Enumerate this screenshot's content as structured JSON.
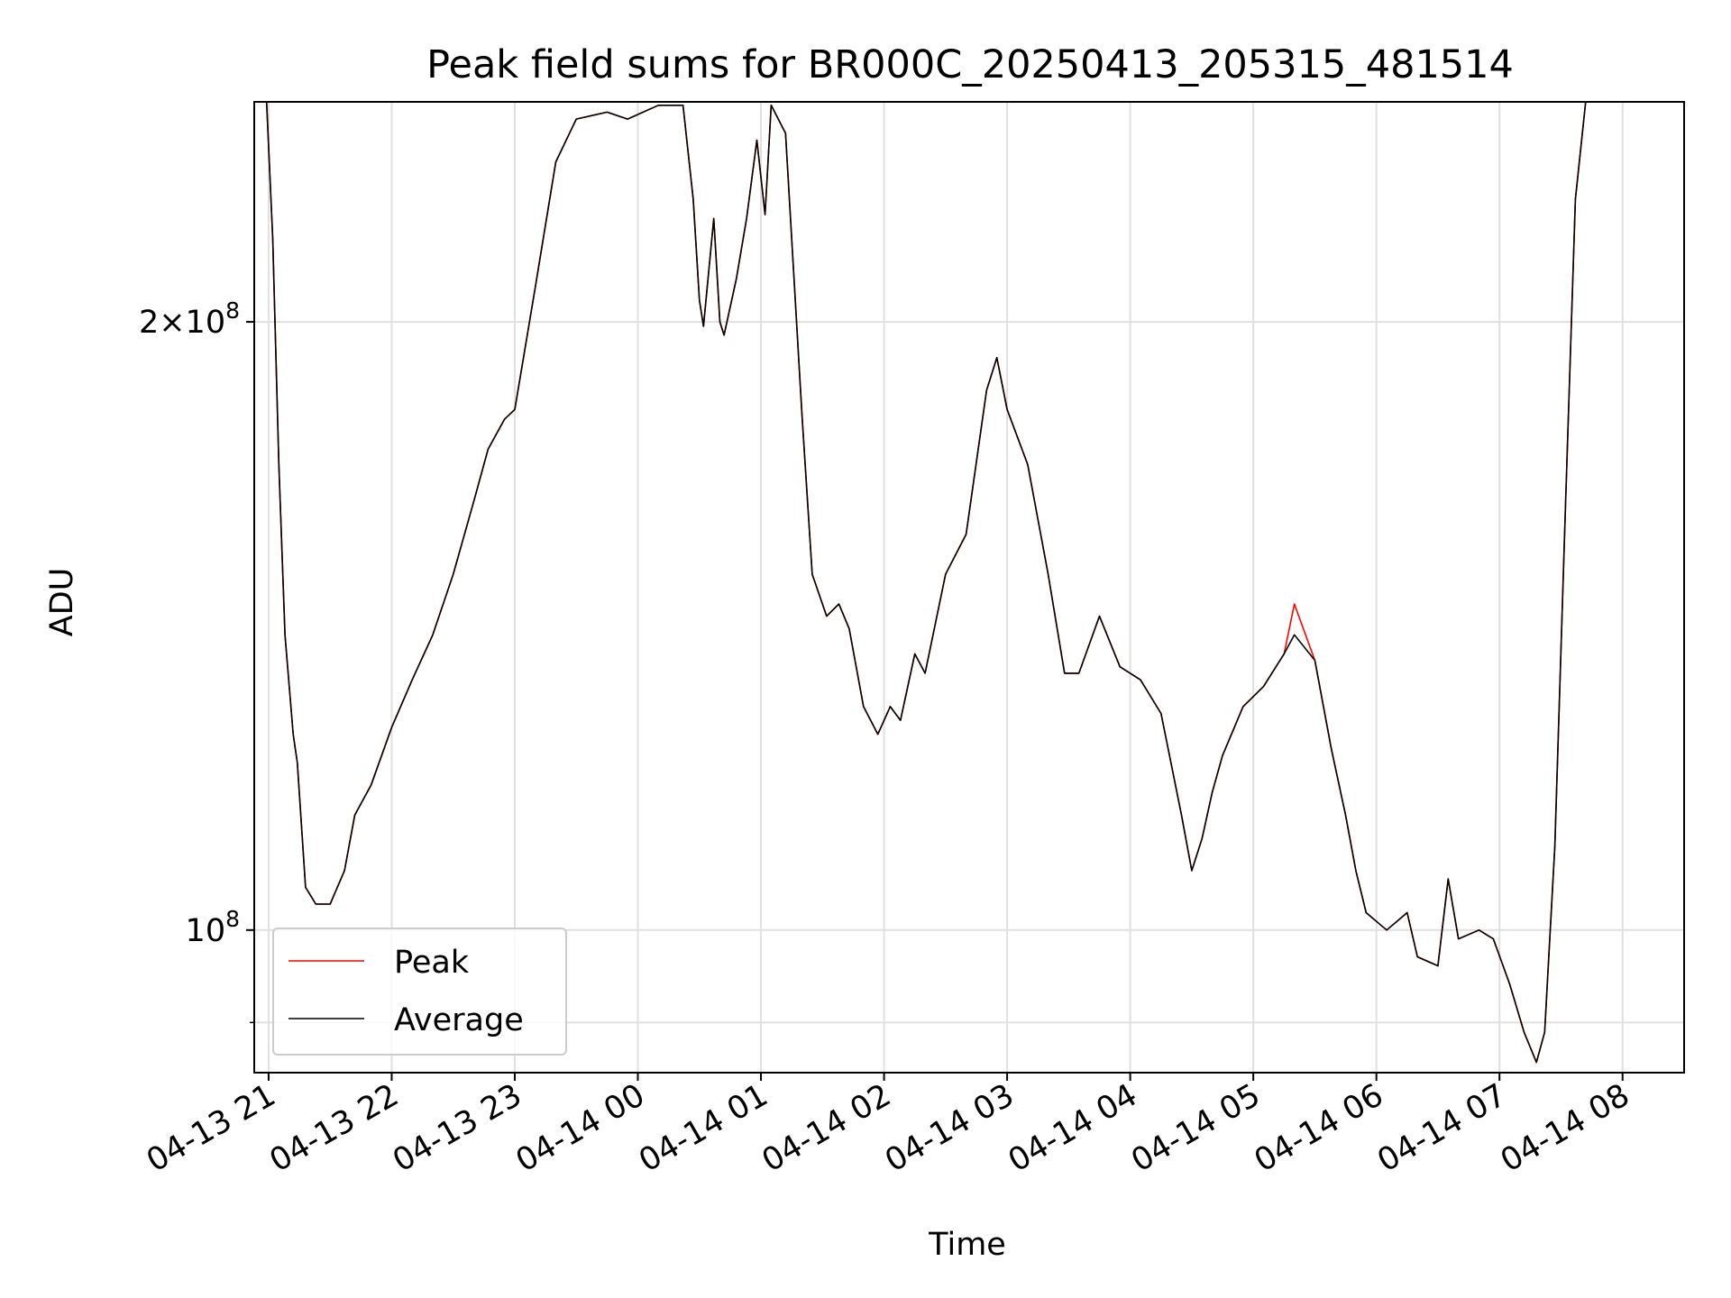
{
  "chart_data": {
    "type": "line",
    "title": "Peak field sums for BR000C_20250413_205315_481514",
    "xlabel": "Time",
    "ylabel": "ADU",
    "y_scale": "log",
    "ylim": [
      85000000,
      257000000
    ],
    "xlim": [
      "2025-04-13 20:53",
      "2025-04-14 08:30"
    ],
    "x_ticks": [
      "2025-04-13 21:00",
      "2025-04-13 22:00",
      "2025-04-13 23:00",
      "2025-04-14 00:00",
      "2025-04-14 01:00",
      "2025-04-14 02:00",
      "2025-04-14 03:00",
      "2025-04-14 04:00",
      "2025-04-14 05:00",
      "2025-04-14 06:00",
      "2025-04-14 07:00",
      "2025-04-14 08:00"
    ],
    "x_tick_labels": [
      "04-13 21",
      "04-13 22",
      "04-13 23",
      "04-14 00",
      "04-14 01",
      "04-14 02",
      "04-14 03",
      "04-14 04",
      "04-14 05",
      "04-14 06",
      "04-14 07",
      "04-14 08"
    ],
    "y_major_ticks": [
      100000000,
      200000000
    ],
    "y_tick_labels": [
      "10^8",
      "2×10^8"
    ],
    "grid": true,
    "legend_position": "lower-left",
    "series": [
      {
        "name": "Peak",
        "color": "#ff0000",
        "points": [
          [
            "2025-04-13 20:53",
            257000000
          ],
          [
            "2025-04-13 20:59",
            257000000
          ],
          [
            "2025-04-13 21:02",
            220000000
          ],
          [
            "2025-04-13 21:05",
            170000000
          ],
          [
            "2025-04-13 21:08",
            140000000
          ],
          [
            "2025-04-13 21:12",
            125000000
          ],
          [
            "2025-04-13 21:14",
            121000000
          ],
          [
            "2025-04-13 21:18",
            105000000
          ],
          [
            "2025-04-13 21:23",
            103000000
          ],
          [
            "2025-04-13 21:30",
            103000000
          ],
          [
            "2025-04-13 21:37",
            107000000
          ],
          [
            "2025-04-13 21:42",
            114000000
          ],
          [
            "2025-04-13 21:50",
            118000000
          ],
          [
            "2025-04-13 22:00",
            126000000
          ],
          [
            "2025-04-13 22:10",
            133000000
          ],
          [
            "2025-04-13 22:20",
            140000000
          ],
          [
            "2025-04-13 22:30",
            150000000
          ],
          [
            "2025-04-13 22:40",
            163000000
          ],
          [
            "2025-04-13 22:47",
            173000000
          ],
          [
            "2025-04-13 22:55",
            179000000
          ],
          [
            "2025-04-13 23:00",
            181000000
          ],
          [
            "2025-04-13 23:10",
            208000000
          ],
          [
            "2025-04-13 23:20",
            240000000
          ],
          [
            "2025-04-13 23:30",
            252000000
          ],
          [
            "2025-04-13 23:45",
            254000000
          ],
          [
            "2025-04-13 23:55",
            252000000
          ],
          [
            "2025-04-14 00:10",
            256000000
          ],
          [
            "2025-04-14 00:22",
            256000000
          ],
          [
            "2025-04-14 00:27",
            230000000
          ],
          [
            "2025-04-14 00:30",
            205000000
          ],
          [
            "2025-04-14 00:32",
            199000000
          ],
          [
            "2025-04-14 00:37",
            225000000
          ],
          [
            "2025-04-14 00:40",
            200000000
          ],
          [
            "2025-04-14 00:42",
            197000000
          ],
          [
            "2025-04-14 00:48",
            210000000
          ],
          [
            "2025-04-14 00:53",
            225000000
          ],
          [
            "2025-04-14 00:58",
            246000000
          ],
          [
            "2025-04-14 01:02",
            226000000
          ],
          [
            "2025-04-14 01:05",
            256000000
          ],
          [
            "2025-04-14 01:12",
            248000000
          ],
          [
            "2025-04-14 01:20",
            180000000
          ],
          [
            "2025-04-14 01:25",
            150000000
          ],
          [
            "2025-04-14 01:32",
            143000000
          ],
          [
            "2025-04-14 01:38",
            145000000
          ],
          [
            "2025-04-14 01:43",
            141000000
          ],
          [
            "2025-04-14 01:50",
            129000000
          ],
          [
            "2025-04-14 01:57",
            125000000
          ],
          [
            "2025-04-14 02:03",
            129000000
          ],
          [
            "2025-04-14 02:08",
            127000000
          ],
          [
            "2025-04-14 02:15",
            137000000
          ],
          [
            "2025-04-14 02:20",
            134000000
          ],
          [
            "2025-04-14 02:30",
            150000000
          ],
          [
            "2025-04-14 02:40",
            157000000
          ],
          [
            "2025-04-14 02:50",
            185000000
          ],
          [
            "2025-04-14 02:55",
            192000000
          ],
          [
            "2025-04-14 03:00",
            181000000
          ],
          [
            "2025-04-14 03:10",
            170000000
          ],
          [
            "2025-04-14 03:20",
            150000000
          ],
          [
            "2025-04-14 03:28",
            134000000
          ],
          [
            "2025-04-14 03:35",
            134000000
          ],
          [
            "2025-04-14 03:45",
            143000000
          ],
          [
            "2025-04-14 03:55",
            135000000
          ],
          [
            "2025-04-14 04:05",
            133000000
          ],
          [
            "2025-04-14 04:15",
            128000000
          ],
          [
            "2025-04-14 04:25",
            114000000
          ],
          [
            "2025-04-14 04:30",
            107000000
          ],
          [
            "2025-04-14 04:35",
            111000000
          ],
          [
            "2025-04-14 04:40",
            117000000
          ],
          [
            "2025-04-14 04:45",
            122000000
          ],
          [
            "2025-04-14 04:55",
            129000000
          ],
          [
            "2025-04-14 05:05",
            132000000
          ],
          [
            "2025-04-14 05:15",
            137000000
          ],
          [
            "2025-04-14 05:20",
            145000000
          ],
          [
            "2025-04-14 05:30",
            136000000
          ],
          [
            "2025-04-14 05:38",
            123000000
          ],
          [
            "2025-04-14 05:45",
            114000000
          ],
          [
            "2025-04-14 05:50",
            107000000
          ],
          [
            "2025-04-14 05:55",
            102000000
          ],
          [
            "2025-04-14 06:05",
            100000000
          ],
          [
            "2025-04-14 06:15",
            102000000
          ],
          [
            "2025-04-14 06:20",
            97000000
          ],
          [
            "2025-04-14 06:30",
            96000000
          ],
          [
            "2025-04-14 06:35",
            106000000
          ],
          [
            "2025-04-14 06:40",
            99000000
          ],
          [
            "2025-04-14 06:50",
            100000000
          ],
          [
            "2025-04-14 06:57",
            99000000
          ],
          [
            "2025-04-14 07:05",
            94000000
          ],
          [
            "2025-04-14 07:12",
            89000000
          ],
          [
            "2025-04-14 07:18",
            86000000
          ],
          [
            "2025-04-14 07:22",
            89000000
          ],
          [
            "2025-04-14 07:27",
            110000000
          ],
          [
            "2025-04-14 07:32",
            160000000
          ],
          [
            "2025-04-14 07:37",
            230000000
          ],
          [
            "2025-04-14 07:42",
            257000000
          ],
          [
            "2025-04-14 08:30",
            257000000
          ]
        ]
      },
      {
        "name": "Average",
        "color": "#000000",
        "points": [
          [
            "2025-04-13 20:53",
            257000000
          ],
          [
            "2025-04-13 20:59",
            257000000
          ],
          [
            "2025-04-13 21:02",
            220000000
          ],
          [
            "2025-04-13 21:05",
            170000000
          ],
          [
            "2025-04-13 21:08",
            140000000
          ],
          [
            "2025-04-13 21:12",
            125000000
          ],
          [
            "2025-04-13 21:14",
            121000000
          ],
          [
            "2025-04-13 21:18",
            105000000
          ],
          [
            "2025-04-13 21:23",
            103000000
          ],
          [
            "2025-04-13 21:30",
            103000000
          ],
          [
            "2025-04-13 21:37",
            107000000
          ],
          [
            "2025-04-13 21:42",
            114000000
          ],
          [
            "2025-04-13 21:50",
            118000000
          ],
          [
            "2025-04-13 22:00",
            126000000
          ],
          [
            "2025-04-13 22:10",
            133000000
          ],
          [
            "2025-04-13 22:20",
            140000000
          ],
          [
            "2025-04-13 22:30",
            150000000
          ],
          [
            "2025-04-13 22:40",
            163000000
          ],
          [
            "2025-04-13 22:47",
            173000000
          ],
          [
            "2025-04-13 22:55",
            179000000
          ],
          [
            "2025-04-13 23:00",
            181000000
          ],
          [
            "2025-04-13 23:10",
            208000000
          ],
          [
            "2025-04-13 23:20",
            240000000
          ],
          [
            "2025-04-13 23:30",
            252000000
          ],
          [
            "2025-04-13 23:45",
            254000000
          ],
          [
            "2025-04-13 23:55",
            252000000
          ],
          [
            "2025-04-14 00:10",
            256000000
          ],
          [
            "2025-04-14 00:22",
            256000000
          ],
          [
            "2025-04-14 00:27",
            230000000
          ],
          [
            "2025-04-14 00:30",
            205000000
          ],
          [
            "2025-04-14 00:32",
            199000000
          ],
          [
            "2025-04-14 00:37",
            225000000
          ],
          [
            "2025-04-14 00:40",
            200000000
          ],
          [
            "2025-04-14 00:42",
            197000000
          ],
          [
            "2025-04-14 00:48",
            210000000
          ],
          [
            "2025-04-14 00:53",
            225000000
          ],
          [
            "2025-04-14 00:58",
            246000000
          ],
          [
            "2025-04-14 01:02",
            226000000
          ],
          [
            "2025-04-14 01:05",
            256000000
          ],
          [
            "2025-04-14 01:12",
            248000000
          ],
          [
            "2025-04-14 01:20",
            180000000
          ],
          [
            "2025-04-14 01:25",
            150000000
          ],
          [
            "2025-04-14 01:32",
            143000000
          ],
          [
            "2025-04-14 01:38",
            145000000
          ],
          [
            "2025-04-14 01:43",
            141000000
          ],
          [
            "2025-04-14 01:50",
            129000000
          ],
          [
            "2025-04-14 01:57",
            125000000
          ],
          [
            "2025-04-14 02:03",
            129000000
          ],
          [
            "2025-04-14 02:08",
            127000000
          ],
          [
            "2025-04-14 02:15",
            137000000
          ],
          [
            "2025-04-14 02:20",
            134000000
          ],
          [
            "2025-04-14 02:30",
            150000000
          ],
          [
            "2025-04-14 02:40",
            157000000
          ],
          [
            "2025-04-14 02:50",
            185000000
          ],
          [
            "2025-04-14 02:55",
            192000000
          ],
          [
            "2025-04-14 03:00",
            181000000
          ],
          [
            "2025-04-14 03:10",
            170000000
          ],
          [
            "2025-04-14 03:20",
            150000000
          ],
          [
            "2025-04-14 03:28",
            134000000
          ],
          [
            "2025-04-14 03:35",
            134000000
          ],
          [
            "2025-04-14 03:45",
            143000000
          ],
          [
            "2025-04-14 03:55",
            135000000
          ],
          [
            "2025-04-14 04:05",
            133000000
          ],
          [
            "2025-04-14 04:15",
            128000000
          ],
          [
            "2025-04-14 04:25",
            114000000
          ],
          [
            "2025-04-14 04:30",
            107000000
          ],
          [
            "2025-04-14 04:35",
            111000000
          ],
          [
            "2025-04-14 04:40",
            117000000
          ],
          [
            "2025-04-14 04:45",
            122000000
          ],
          [
            "2025-04-14 04:55",
            129000000
          ],
          [
            "2025-04-14 05:05",
            132000000
          ],
          [
            "2025-04-14 05:15",
            137000000
          ],
          [
            "2025-04-14 05:20",
            140000000
          ],
          [
            "2025-04-14 05:30",
            136000000
          ],
          [
            "2025-04-14 05:38",
            123000000
          ],
          [
            "2025-04-14 05:45",
            114000000
          ],
          [
            "2025-04-14 05:50",
            107000000
          ],
          [
            "2025-04-14 05:55",
            102000000
          ],
          [
            "2025-04-14 06:05",
            100000000
          ],
          [
            "2025-04-14 06:15",
            102000000
          ],
          [
            "2025-04-14 06:20",
            97000000
          ],
          [
            "2025-04-14 06:30",
            96000000
          ],
          [
            "2025-04-14 06:35",
            106000000
          ],
          [
            "2025-04-14 06:40",
            99000000
          ],
          [
            "2025-04-14 06:50",
            100000000
          ],
          [
            "2025-04-14 06:57",
            99000000
          ],
          [
            "2025-04-14 07:05",
            94000000
          ],
          [
            "2025-04-14 07:12",
            89000000
          ],
          [
            "2025-04-14 07:18",
            86000000
          ],
          [
            "2025-04-14 07:22",
            89000000
          ],
          [
            "2025-04-14 07:27",
            110000000
          ],
          [
            "2025-04-14 07:32",
            160000000
          ],
          [
            "2025-04-14 07:37",
            230000000
          ],
          [
            "2025-04-14 07:42",
            257000000
          ],
          [
            "2025-04-14 08:30",
            257000000
          ]
        ]
      }
    ]
  }
}
